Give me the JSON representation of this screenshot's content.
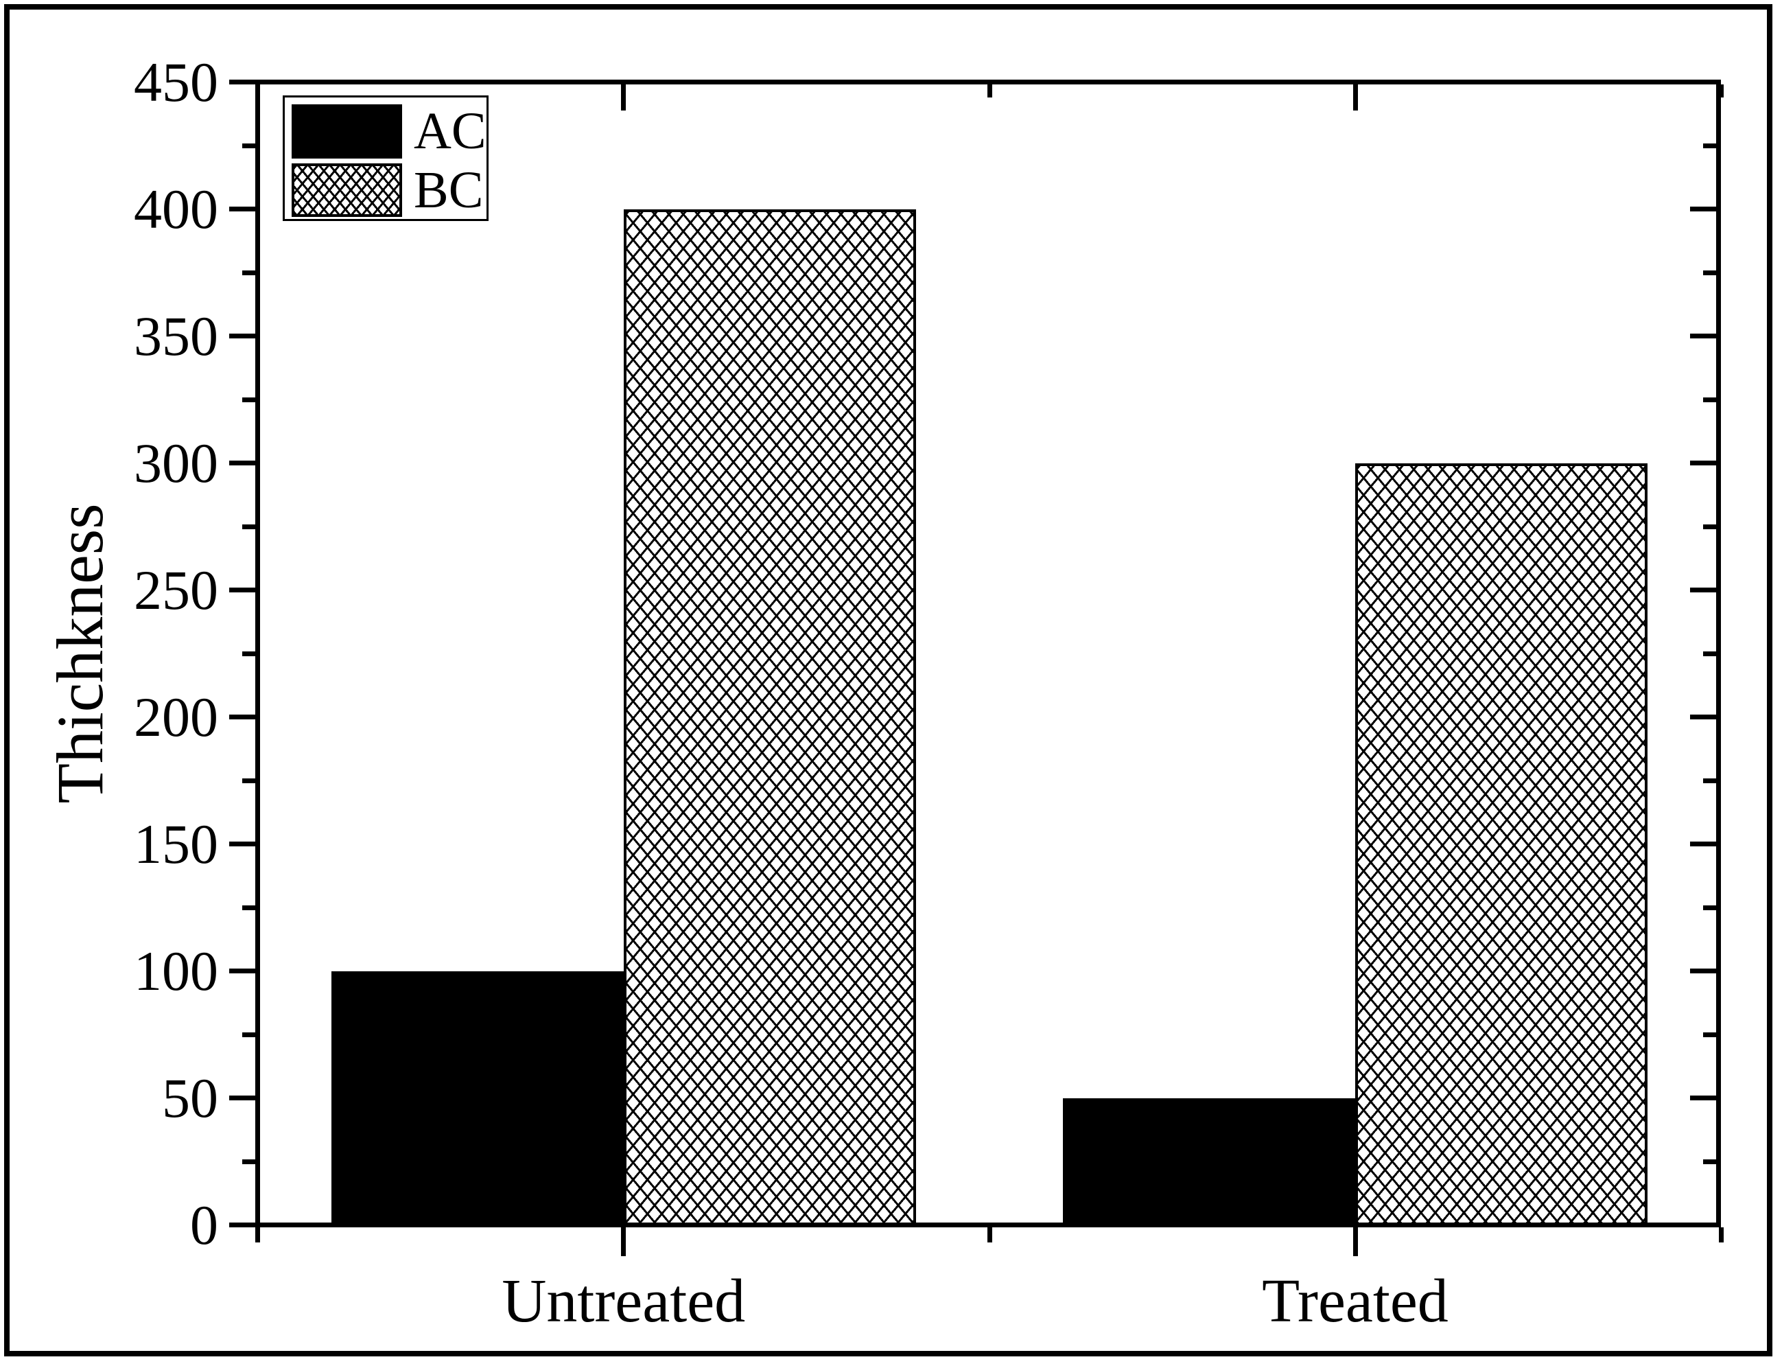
{
  "figure": {
    "background_color": "#ffffff",
    "frame_color": "#000000"
  },
  "chart_data": {
    "type": "bar",
    "title": "",
    "categories": [
      "Untreated",
      "Treated"
    ],
    "series": [
      {
        "name": "AC",
        "values": [
          100,
          50
        ],
        "style": "solid-black"
      },
      {
        "name": "BC",
        "values": [
          400,
          300
        ],
        "style": "white-crosshatch"
      }
    ],
    "xlabel": "",
    "ylabel": "Thichkness",
    "ylim": [
      0,
      450
    ],
    "ytick_major_step": 50,
    "ytick_minor_step": 25,
    "ytick_labels": [
      "0",
      "50",
      "100",
      "150",
      "200",
      "250",
      "300",
      "350",
      "400",
      "450"
    ],
    "grid": false,
    "legend_position": "top-left",
    "legend_entries": [
      "AC",
      "BC"
    ],
    "axis_color": "#000000",
    "bar_color_ac": "#000000",
    "bar_pattern_bc": "crosshatch"
  }
}
